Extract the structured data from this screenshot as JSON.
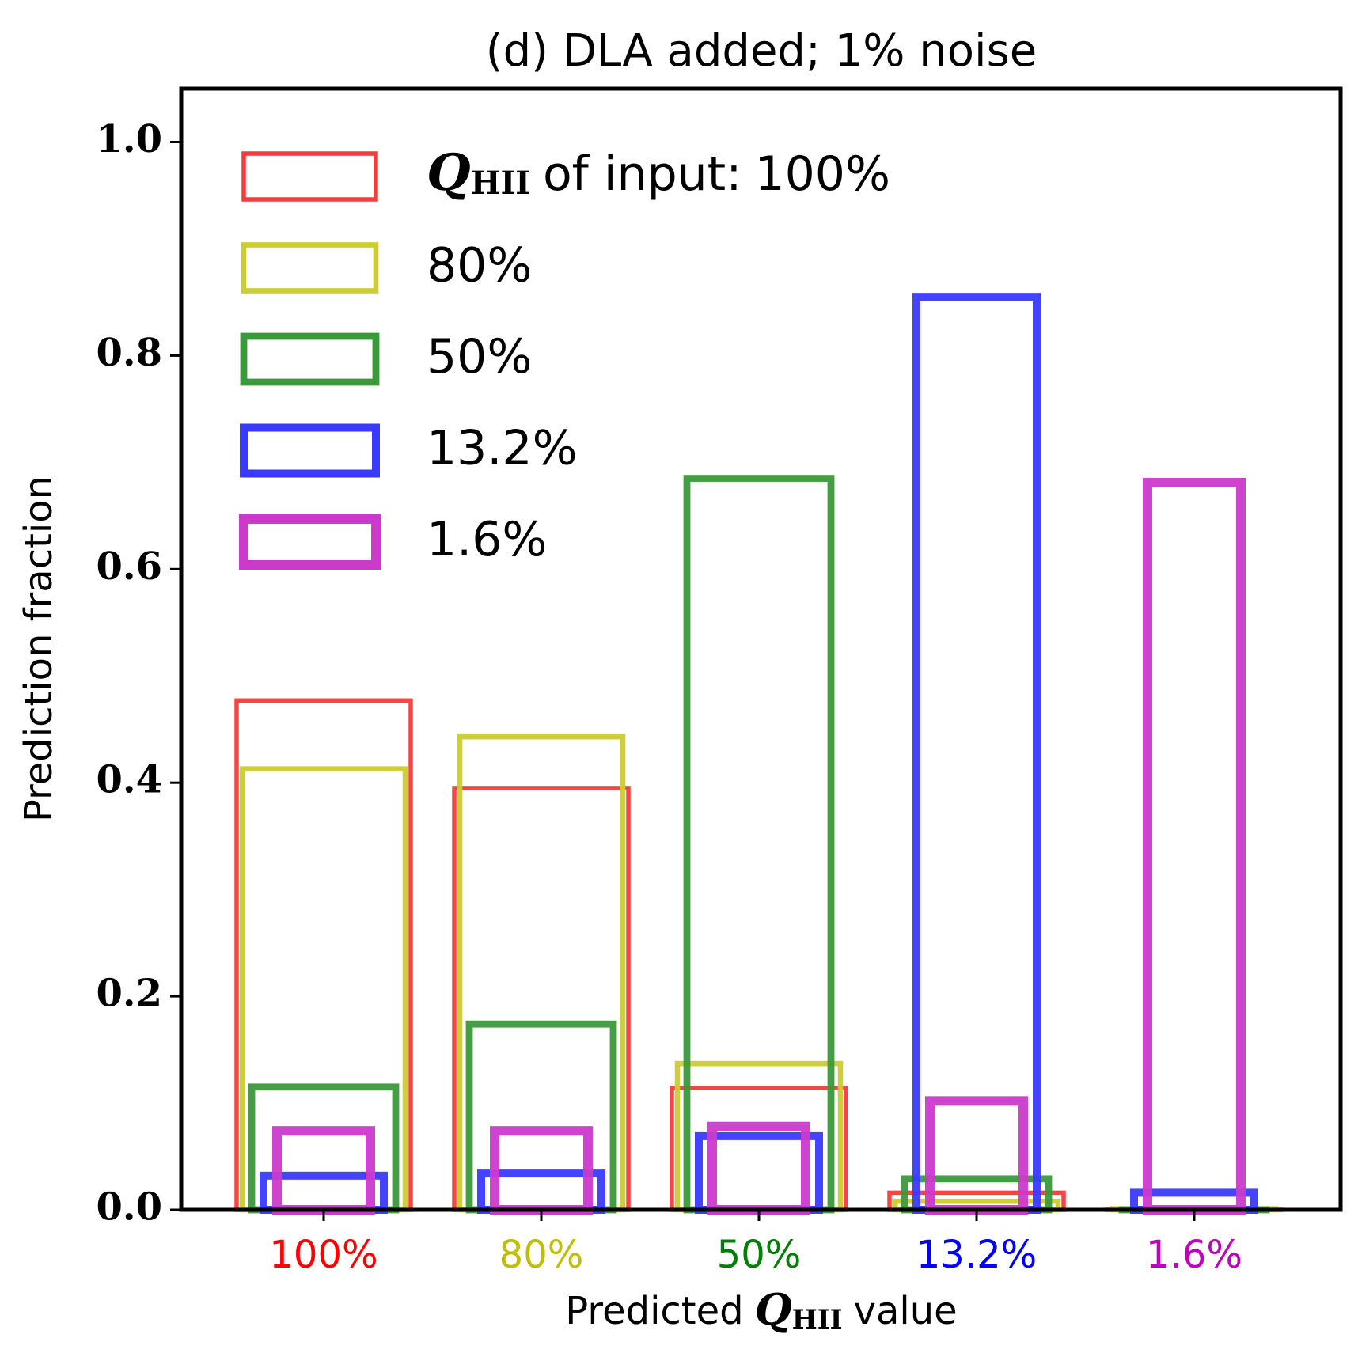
{
  "chart_data": {
    "type": "bar",
    "title": "(d) DLA added; 1% noise",
    "y_label": "Prediction fraction",
    "x_label": {
      "before": "Predicted",
      "symbol": "Q",
      "subscript": "HII",
      "after": "value"
    },
    "legend_prefix": {
      "symbol": "Q",
      "subscript": "HII",
      "text": "of input:"
    },
    "categories": [
      "100%",
      "80%",
      "50%",
      "13.2%",
      "1.6%"
    ],
    "category_colors": [
      "#ff0000",
      "#bfbf00",
      "#008000",
      "#0000ff",
      "#bf00bf"
    ],
    "series": [
      {
        "name": "100%",
        "color": "#f73a3a",
        "values": [
          0.477,
          0.395,
          0.114,
          0.016,
          0.0
        ]
      },
      {
        "name": "80%",
        "color": "#cccc33",
        "values": [
          0.413,
          0.443,
          0.137,
          0.008,
          0.001
        ]
      },
      {
        "name": "50%",
        "color": "#3a9a3a",
        "values": [
          0.115,
          0.174,
          0.685,
          0.029,
          0.0
        ]
      },
      {
        "name": "13.2%",
        "color": "#3a3aff",
        "values": [
          0.032,
          0.034,
          0.069,
          0.855,
          0.016
        ]
      },
      {
        "name": "1.6%",
        "color": "#cc3acc",
        "values": [
          0.074,
          0.074,
          0.078,
          0.102,
          0.681
        ]
      }
    ],
    "ylim": [
      0,
      1.05
    ],
    "yticks": [
      {
        "value": 0,
        "label": "0.0"
      },
      0.2,
      0.4,
      0.6,
      0.8,
      {
        "value": 1,
        "label": "1.0"
      }
    ],
    "legend": "upper left"
  }
}
